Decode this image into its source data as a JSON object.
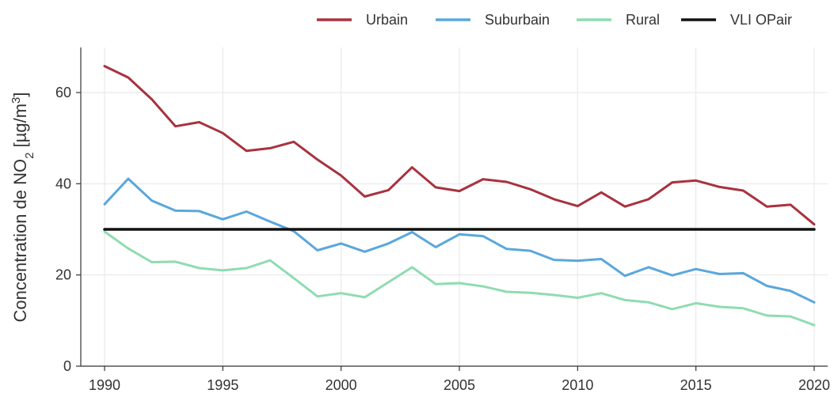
{
  "chart_data": {
    "type": "line",
    "title": "",
    "xlabel": "",
    "ylabel": {
      "prefix": "Concentration de NO",
      "subscript": "2",
      "middle": " [µg/m",
      "superscript": "3",
      "suffix": "]"
    },
    "xlim": [
      1990,
      2020
    ],
    "ylim": [
      0,
      70
    ],
    "x_ticks": [
      1990,
      1995,
      2000,
      2005,
      2010,
      2015,
      2020
    ],
    "y_ticks": [
      0,
      20,
      40,
      60
    ],
    "grid": true,
    "legend_position": "top-right",
    "x": [
      1990,
      1991,
      1992,
      1993,
      1994,
      1995,
      1996,
      1997,
      1998,
      1999,
      2000,
      2001,
      2002,
      2003,
      2004,
      2005,
      2006,
      2007,
      2008,
      2009,
      2010,
      2011,
      2012,
      2013,
      2014,
      2015,
      2016,
      2017,
      2018,
      2019,
      2020
    ],
    "series": [
      {
        "name": "Urbain",
        "color": "#a8323e",
        "values": [
          65.8,
          63.3,
          58.5,
          52.6,
          53.5,
          51.1,
          47.2,
          47.8,
          49.2,
          45.3,
          41.8,
          37.2,
          38.6,
          43.6,
          39.2,
          38.4,
          41.0,
          40.4,
          38.8,
          36.6,
          35.1,
          38.1,
          35.0,
          36.6,
          40.3,
          40.7,
          39.3,
          38.5,
          35.0,
          35.4,
          31.1
        ]
      },
      {
        "name": "Suburbain",
        "color": "#5aa7dc",
        "values": [
          35.5,
          41.1,
          36.3,
          34.1,
          34.0,
          32.2,
          33.9,
          31.7,
          29.6,
          25.4,
          26.9,
          25.1,
          26.9,
          29.4,
          26.1,
          28.9,
          28.5,
          25.7,
          25.3,
          23.3,
          23.1,
          23.5,
          19.8,
          21.7,
          19.9,
          21.3,
          20.2,
          20.4,
          17.6,
          16.5,
          14.0
        ]
      },
      {
        "name": "Rural",
        "color": "#8fdcb1",
        "values": [
          29.5,
          25.8,
          22.8,
          22.9,
          21.5,
          21.0,
          21.5,
          23.2,
          19.3,
          15.3,
          16.0,
          15.1,
          18.4,
          21.7,
          18.0,
          18.2,
          17.5,
          16.3,
          16.1,
          15.6,
          15.0,
          16.0,
          14.5,
          14.0,
          12.5,
          13.8,
          13.0,
          12.7,
          11.1,
          10.9,
          9.0
        ]
      },
      {
        "name": "VLI OPair",
        "color": "#111111",
        "values": [
          30,
          30,
          30,
          30,
          30,
          30,
          30,
          30,
          30,
          30,
          30,
          30,
          30,
          30,
          30,
          30,
          30,
          30,
          30,
          30,
          30,
          30,
          30,
          30,
          30,
          30,
          30,
          30,
          30,
          30,
          30
        ]
      }
    ]
  }
}
